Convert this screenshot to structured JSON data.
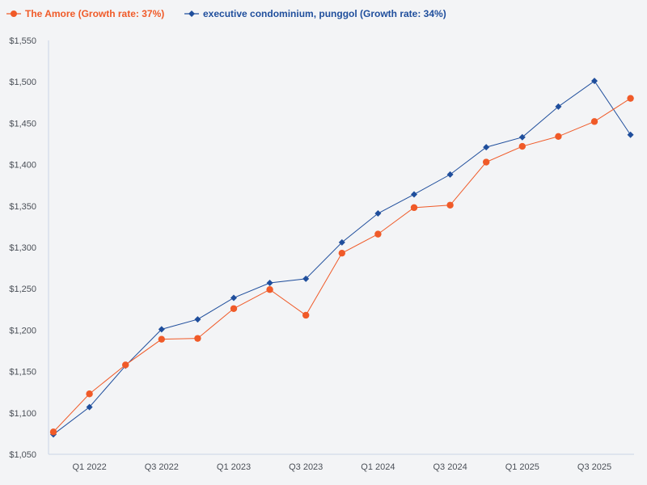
{
  "chart_data": {
    "type": "line",
    "title": "",
    "xlabel": "",
    "ylabel": "",
    "ylim": [
      1050,
      1550
    ],
    "yticks": [
      1050,
      1100,
      1150,
      1200,
      1250,
      1300,
      1350,
      1400,
      1450,
      1500,
      1550
    ],
    "ytick_labels": [
      "$1,050",
      "$1,100",
      "$1,150",
      "$1,200",
      "$1,250",
      "$1,300",
      "$1,350",
      "$1,400",
      "$1,450",
      "$1,500",
      "$1,550"
    ],
    "categories": [
      "Q4 2021",
      "Q1 2022",
      "Q2 2022",
      "Q3 2022",
      "Q4 2022",
      "Q1 2023",
      "Q2 2023",
      "Q3 2023",
      "Q4 2023",
      "Q1 2024",
      "Q2 2024",
      "Q3 2024",
      "Q4 2024",
      "Q1 2025",
      "Q2 2025",
      "Q3 2025",
      "Q4 2025"
    ],
    "xtick_labels": [
      "Q1 2022",
      "Q3 2022",
      "Q1 2023",
      "Q3 2023",
      "Q1 2024",
      "Q3 2024",
      "Q1 2025",
      "Q3 2025"
    ],
    "legend_position": "top-left",
    "grid": false,
    "series": [
      {
        "name": "The Amore (Growth rate: 37%)",
        "color": "#f05a28",
        "marker": "circle",
        "values": [
          1077,
          1123,
          1158,
          1189,
          1190,
          1226,
          1249,
          1218,
          1293,
          1316,
          1348,
          1351,
          1403,
          1422,
          1434,
          1452,
          1480
        ]
      },
      {
        "name": "executive condominium, punggol (Growth rate: 34%)",
        "color": "#1f4e9c",
        "marker": "diamond",
        "values": [
          1074,
          1107,
          1157,
          1201,
          1213,
          1239,
          1257,
          1262,
          1306,
          1341,
          1364,
          1388,
          1421,
          1433,
          1470,
          1501,
          1436
        ]
      }
    ]
  }
}
